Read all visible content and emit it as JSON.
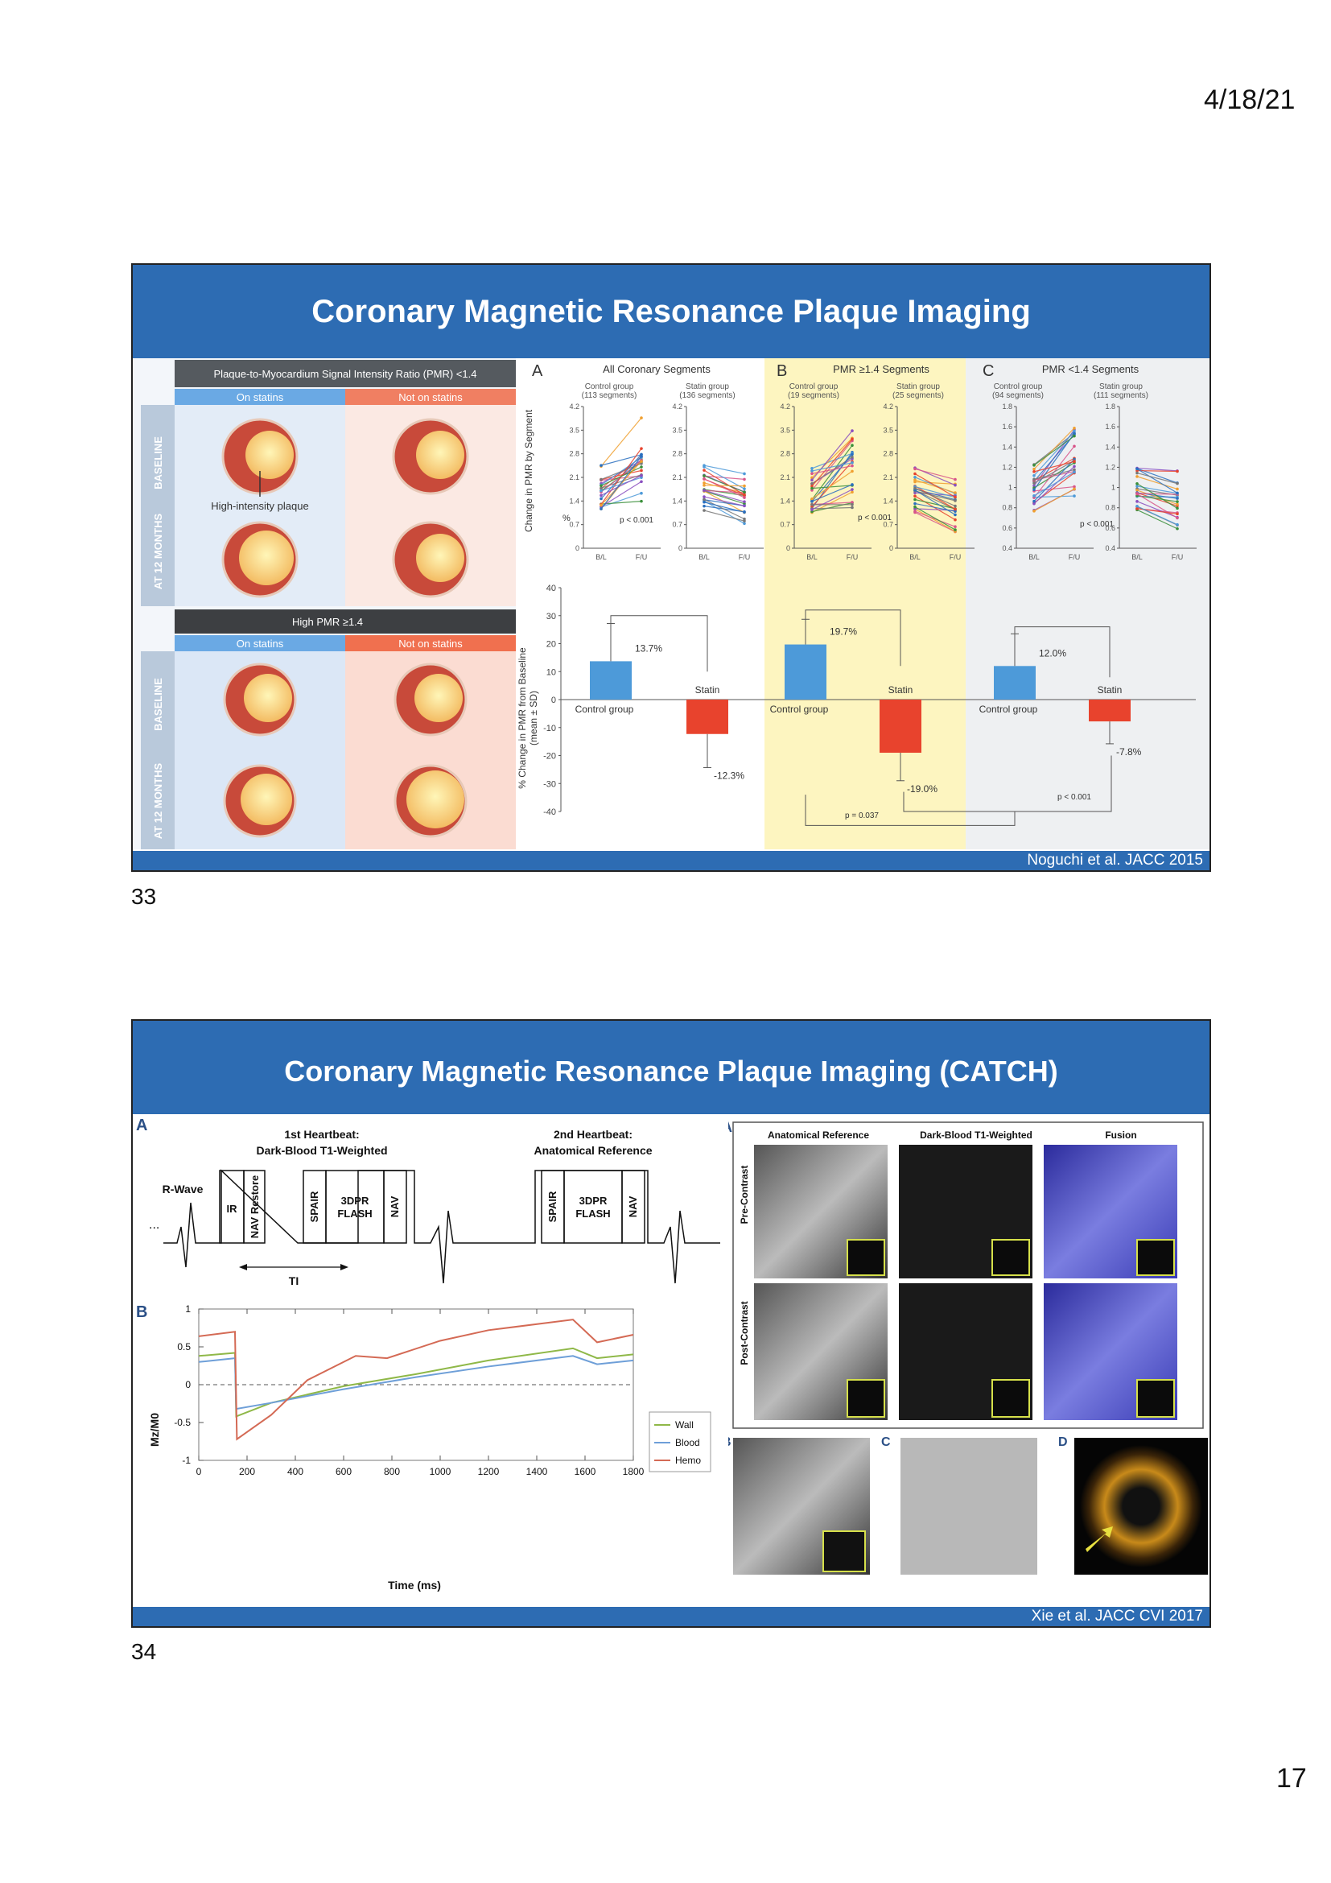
{
  "page": {
    "date": "4/18/21",
    "page_number": "17"
  },
  "slide1": {
    "number": "33",
    "title": "Coronary Magnetic Resonance Plaque Imaging",
    "citation": "Noguchi et al. JACC 2015",
    "left": {
      "top_header": "Plaque-to-Myocardium Signal Intensity Ratio (PMR) <1.4",
      "bottom_header": "High PMR ≥1.4",
      "col_on": "On statins",
      "col_off": "Not on statins",
      "row_baseline": "BASELINE",
      "row_12m": "AT 12 MONTHS",
      "annotation": "High-intensity plaque"
    },
    "panels": {
      "A": {
        "letter": "A",
        "title": "All Coronary Segments",
        "control": "Control group",
        "control_n": "(113 segments)",
        "statin": "Statin group",
        "statin_n": "(136 segments)"
      },
      "B": {
        "letter": "B",
        "title": "PMR ≥1.4 Segments",
        "control": "Control group",
        "control_n": "(19 segments)",
        "statin": "Statin group",
        "statin_n": "(25 segments)"
      },
      "C": {
        "letter": "C",
        "title": "PMR <1.4 Segments",
        "control": "Control group",
        "control_n": "(94 segments)",
        "statin": "Statin group",
        "statin_n": "(111 segments)"
      }
    },
    "axis": {
      "pmr_label": "Change in PMR by Segment",
      "ticks_ab": [
        "0",
        "0.7",
        "1.4",
        "2.1",
        "2.8",
        "3.5",
        "4.2"
      ],
      "ticks_c": [
        "0.4",
        "0.6",
        "0.8",
        "1",
        "1.2",
        "1.4",
        "1.6",
        "1.8"
      ],
      "xticks": [
        "B/L",
        "F/U"
      ],
      "pct_label": "% Change in PMR from Baseline",
      "pct_sub": "(mean ± SD)",
      "pct_unit": "%",
      "pct_ticks": [
        "40",
        "30",
        "20",
        "10",
        "0",
        "-10",
        "-20",
        "-30",
        "-40"
      ]
    },
    "pvalues": {
      "a": "p < 0.001",
      "b": "p < 0.001",
      "c": "p < 0.001",
      "bc": "p < 0.001",
      "ab": "p = 0.037"
    },
    "chart_data": {
      "type": "bar",
      "ylabel": "% Change in PMR from Baseline (mean ± SD)",
      "ylim": [
        -40,
        40
      ],
      "categories": [
        "All Coronary Segments",
        "PMR ≥1.4 Segments",
        "PMR <1.4 Segments"
      ],
      "series": [
        {
          "name": "Control group",
          "values": [
            13.7,
            19.7,
            12.0
          ],
          "labels": [
            "13.7%",
            "19.7%",
            "12.0%"
          ],
          "color": "#4d9ad9"
        },
        {
          "name": "Statin",
          "values": [
            -12.3,
            -19.0,
            -7.8
          ],
          "labels": [
            "-12.3%",
            "-19.0%",
            "-7.8%"
          ],
          "color": "#e8432d"
        }
      ]
    }
  },
  "slide2": {
    "number": "34",
    "title": "Coronary Magnetic Resonance Plaque Imaging (CATCH)",
    "citation": "Xie et al. JACC CVI 2017",
    "panelA": {
      "letter": "A",
      "hb1_a": "1st Heartbeat:",
      "hb1_b": "Dark-Blood T1-Weighted",
      "hb2_a": "2nd Heartbeat:",
      "hb2_b": "Anatomical Reference",
      "rwave": "R-Wave",
      "ir": "IR",
      "navr": "NAV Restore",
      "spair": "SPAIR",
      "flash1": "3DPR",
      "flash2": "FLASH",
      "nav": "NAV",
      "ti": "TI",
      "dots": "..."
    },
    "panelB": {
      "letter": "B",
      "ylabel": "Mz/M0",
      "xlabel": "Time (ms)",
      "yticks": [
        "1",
        "0.5",
        "0",
        "-0.5",
        "-1"
      ],
      "xticks": [
        "0",
        "200",
        "400",
        "600",
        "800",
        "1000",
        "1200",
        "1400",
        "1600",
        "1800"
      ],
      "legend": [
        {
          "name": "Wall",
          "color": "#8fb848"
        },
        {
          "name": "Blood",
          "color": "#6e9fd8"
        },
        {
          "name": "Hemo",
          "color": "#d46a55"
        }
      ]
    },
    "images": {
      "letter": "A",
      "col1": "Anatomical Reference",
      "col2": "Dark-Blood T1-Weighted",
      "col3": "Fusion",
      "row1": "Pre-Contrast",
      "row2": "Post-Contrast",
      "b": "B",
      "c": "C",
      "d": "D"
    }
  }
}
